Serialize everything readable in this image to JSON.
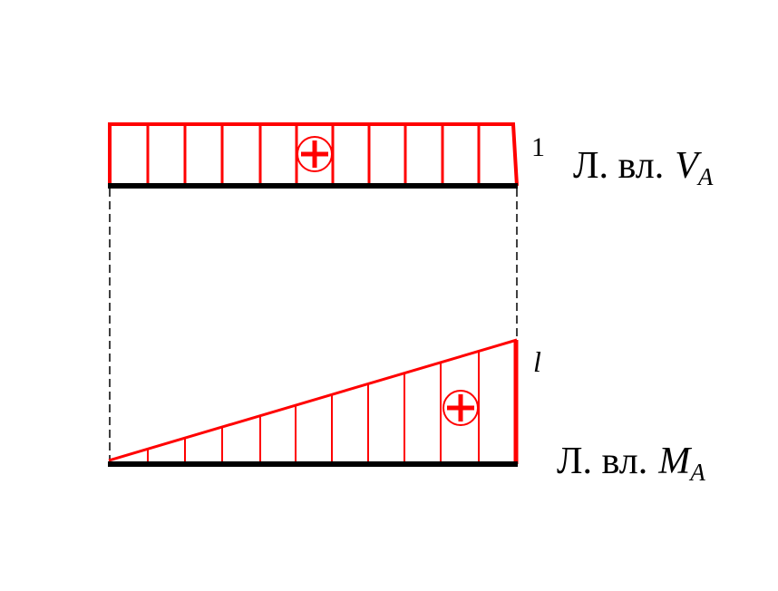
{
  "diagrams": [
    {
      "value_label": "1",
      "title": {
        "prefix": "Л. вл.",
        "symbol": "V",
        "subscript": "A"
      }
    },
    {
      "value_label": "l",
      "title": {
        "prefix": "Л. вл.",
        "symbol": "M",
        "subscript": "A"
      }
    }
  ]
}
